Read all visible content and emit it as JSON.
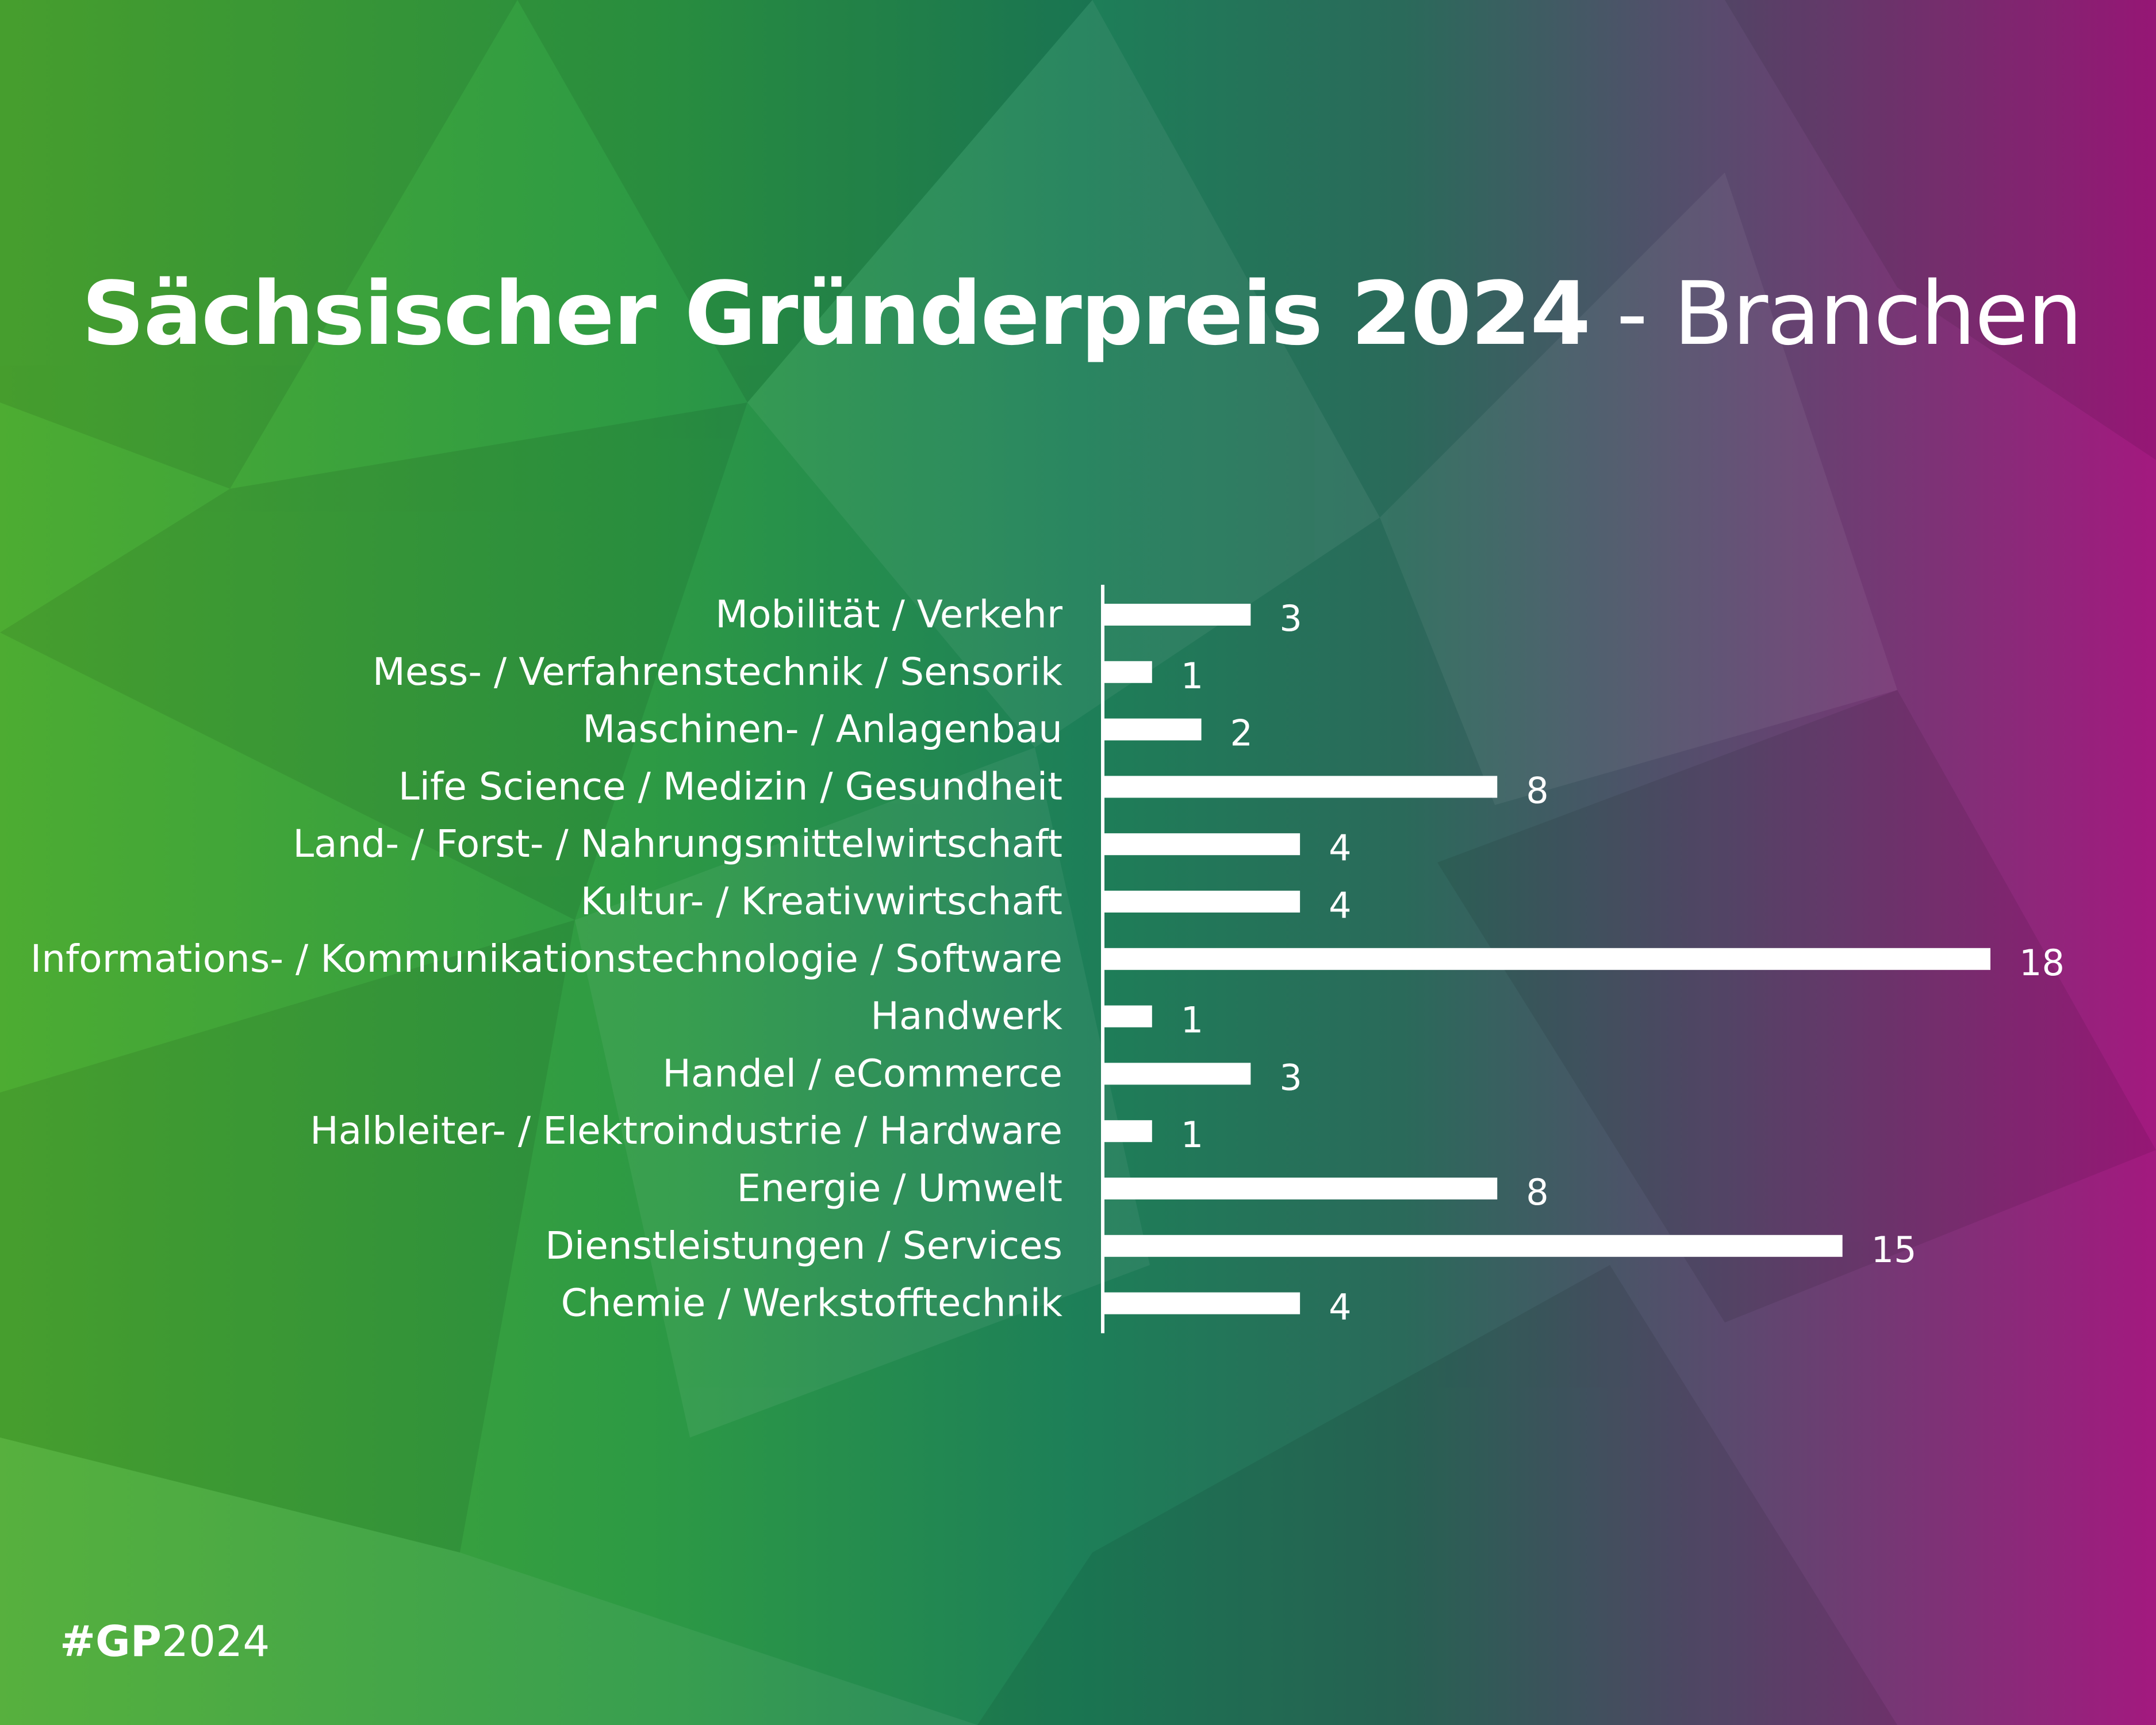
{
  "colors": {
    "green": "#4dac32",
    "teal": "#1f7a54",
    "purple": "#a3197f",
    "white": "#ffffff"
  },
  "title": {
    "bold": "Sächsischer Gründerpreis 2024",
    "light": " - Branchen"
  },
  "hashtag": {
    "bold": "#GP",
    "light": "2024"
  },
  "chart_data": {
    "type": "bar",
    "orientation": "horizontal",
    "categories": [
      "Mobilität / Verkehr",
      "Mess- / Verfahrenstechnik / Sensorik",
      "Maschinen- / Anlagenbau",
      "Life Science / Medizin / Gesundheit",
      "Land- / Forst- / Nahrungsmittelwirtschaft",
      "Kultur- / Kreativwirtschaft",
      "Informations- / Kommunikationstechnologie / Software",
      "Handwerk",
      "Handel / eCommerce",
      "Halbleiter- / Elektroindustrie / Hardware",
      "Energie / Umwelt",
      "Dienstleistungen / Services",
      "Chemie / Werkstofftechnik"
    ],
    "values": [
      3,
      1,
      2,
      8,
      4,
      4,
      18,
      1,
      3,
      1,
      8,
      15,
      4
    ],
    "title": "Sächsischer Gründerpreis 2024 - Branchen",
    "xlim": [
      0,
      18
    ],
    "grid": false,
    "legend": "none",
    "data_labels": true
  }
}
